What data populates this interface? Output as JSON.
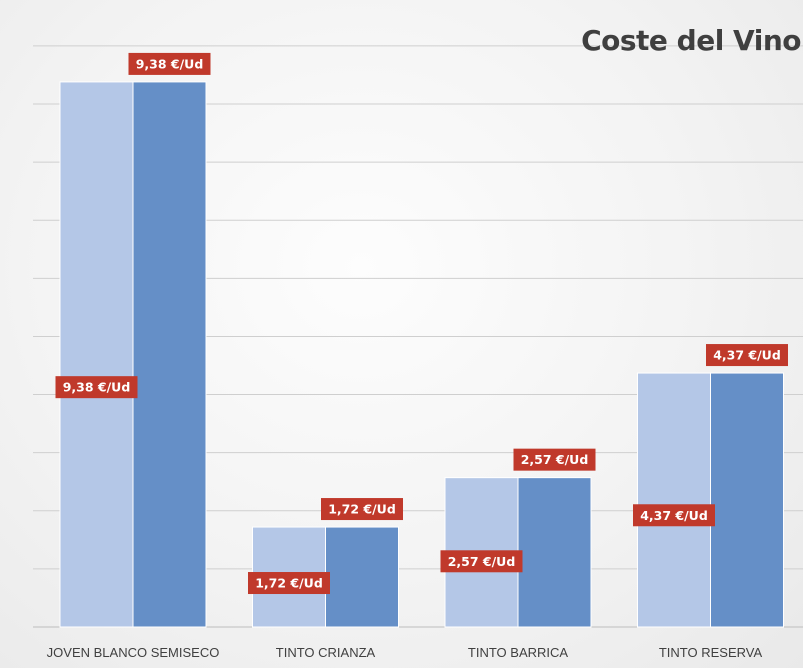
{
  "chart_data": {
    "type": "bar",
    "title": "Coste del Vino",
    "xlabel": "",
    "ylabel": "",
    "categories": [
      "JOVEN BLANCO SEMISECO",
      "TINTO CRIANZA",
      "TINTO BARRICA",
      "TINTO RESERVA"
    ],
    "series": [
      {
        "values": [
          9.38,
          1.72,
          2.57,
          4.37
        ],
        "labels": [
          "9,38 €/Ud",
          "1,72 €/Ud",
          "2,57 €/Ud",
          "4,37 €/Ud"
        ],
        "color": "#b4c7e7"
      },
      {
        "values": [
          9.38,
          1.72,
          2.57,
          4.37
        ],
        "labels": [
          "9,38 €/Ud",
          "1,72 €/Ud",
          "2,57 €/Ud",
          "4,37 €/Ud"
        ],
        "color": "#658fc7"
      }
    ],
    "ylim": [
      0,
      10
    ],
    "gridlines": true,
    "legend": "none",
    "label_color": "#c0392b"
  }
}
